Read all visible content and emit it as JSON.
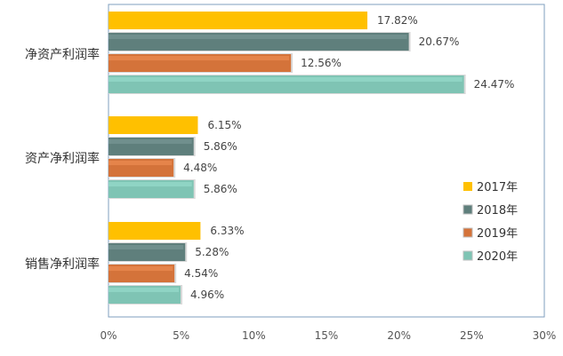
{
  "chart_data": {
    "type": "bar",
    "orientation": "horizontal",
    "categories": [
      "净资产利润率",
      "资产净利润率",
      "销售净利润率"
    ],
    "series": [
      {
        "name": "2017年",
        "values": [
          17.82,
          6.15,
          6.33
        ],
        "labels": [
          "17.82%",
          "6.15%",
          "6.33%"
        ],
        "color": "#FFC000"
      },
      {
        "name": "2018年",
        "values": [
          20.67,
          5.86,
          5.28
        ],
        "labels": [
          "20.67%",
          "5.86%",
          "5.28%"
        ],
        "color": "#5F7F7C"
      },
      {
        "name": "2019年",
        "values": [
          12.56,
          4.48,
          4.54
        ],
        "labels": [
          "12.56%",
          "4.48%",
          "4.54%"
        ],
        "color": "#D4733A"
      },
      {
        "name": "2020年",
        "values": [
          24.47,
          5.86,
          4.96
        ],
        "labels": [
          "24.47%",
          "5.86%",
          "4.96%"
        ],
        "color": "#7FC4B4"
      }
    ],
    "xlim": [
      0,
      30
    ],
    "xticks": [
      0,
      5,
      10,
      15,
      20,
      25,
      30
    ],
    "xtick_labels": [
      "0%",
      "5%",
      "10%",
      "15%",
      "20%",
      "25%",
      "30%"
    ],
    "grid": false,
    "legend_position": "right"
  }
}
